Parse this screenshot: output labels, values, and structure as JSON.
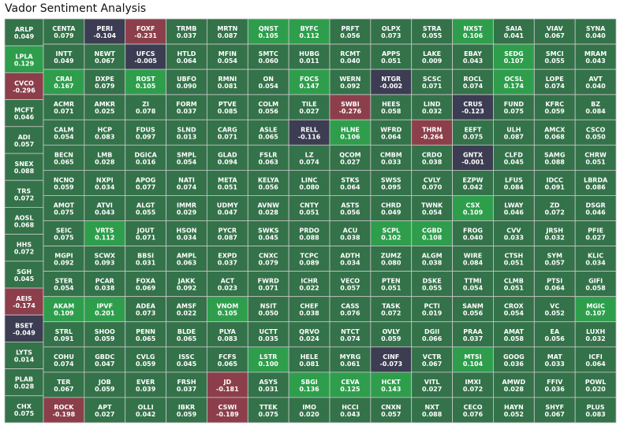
{
  "title": "Vador Sentiment Analysis",
  "colors": {
    "positive_low": "#34724a",
    "positive_high": "#2e9e4c",
    "negative_mild": "#3c3d52",
    "negative_strong": "#8c3f4b",
    "border": "#c8c8c8"
  },
  "chart_data": {
    "type": "heatmap",
    "title": "Vador Sentiment Analysis",
    "left_column": [
      {
        "ticker": "ARLP",
        "value": 0.049
      },
      {
        "ticker": "LPLA",
        "value": 0.129
      },
      {
        "ticker": "CVCO",
        "value": -0.296
      },
      {
        "ticker": "MCFT",
        "value": 0.046
      },
      {
        "ticker": "ADI",
        "value": 0.057
      },
      {
        "ticker": "SNEX",
        "value": 0.088
      },
      {
        "ticker": "TRS",
        "value": 0.072
      },
      {
        "ticker": "AOSL",
        "value": 0.068
      },
      {
        "ticker": "HHS",
        "value": 0.072
      },
      {
        "ticker": "SGH",
        "value": 0.045
      },
      {
        "ticker": "AEIS",
        "value": -0.174
      },
      {
        "ticker": "BSET",
        "value": -0.049
      },
      {
        "ticker": "LYTS",
        "value": 0.014
      },
      {
        "ticker": "PLAB",
        "value": 0.028
      },
      {
        "ticker": "CHX",
        "value": 0.075
      }
    ],
    "grid_rows": [
      [
        [
          "CENTA",
          0.079
        ],
        [
          "PERI",
          -0.104
        ],
        [
          "FOXF",
          -0.231
        ],
        [
          "TRMB",
          0.037
        ],
        [
          "MRTN",
          0.087
        ],
        [
          "QNST",
          0.105
        ],
        [
          "BYFC",
          0.112
        ],
        [
          "PRFT",
          0.056
        ],
        [
          "OLPX",
          0.073
        ],
        [
          "STRA",
          0.055
        ],
        [
          "NXST",
          0.106
        ],
        [
          "SAIA",
          0.041
        ],
        [
          "VIAV",
          0.067
        ],
        [
          "SYNA",
          0.04
        ]
      ],
      [
        [
          "INTT",
          0.049
        ],
        [
          "NEWT",
          0.067
        ],
        [
          "UFCS",
          -0.005
        ],
        [
          "HTLD",
          0.064
        ],
        [
          "MFIN",
          0.054
        ],
        [
          "SMTC",
          0.06
        ],
        [
          "HUBG",
          0.011
        ],
        [
          "RCMT",
          0.04
        ],
        [
          "APPS",
          0.051
        ],
        [
          "LAKE",
          0.009
        ],
        [
          "EBAY",
          0.043
        ],
        [
          "SEDG",
          0.107
        ],
        [
          "SMCI",
          0.055
        ],
        [
          "MRAM",
          0.043
        ]
      ],
      [
        [
          "CRAI",
          0.167
        ],
        [
          "DXPE",
          0.079
        ],
        [
          "ROST",
          0.105
        ],
        [
          "UBFO",
          0.09
        ],
        [
          "RMNI",
          0.081
        ],
        [
          "ON",
          0.054
        ],
        [
          "FOCS",
          0.147
        ],
        [
          "WERN",
          0.092
        ],
        [
          "NTGR",
          -0.002
        ],
        [
          "SCSC",
          0.071
        ],
        [
          "ROCL",
          0.074
        ],
        [
          "OCSL",
          0.174
        ],
        [
          "LOPE",
          0.074
        ],
        [
          "AVT",
          0.04
        ]
      ],
      [
        [
          "ACMR",
          0.071
        ],
        [
          "AMKR",
          0.025
        ],
        [
          "ZI",
          0.078
        ],
        [
          "FORM",
          0.037
        ],
        [
          "PTVE",
          0.085
        ],
        [
          "COLM",
          0.056
        ],
        [
          "TILE",
          0.027
        ],
        [
          "SWBI",
          -0.276
        ],
        [
          "HEES",
          0.058
        ],
        [
          "LIND",
          0.032
        ],
        [
          "CRUS",
          -0.123
        ],
        [
          "FUND",
          0.075
        ],
        [
          "KFRC",
          0.059
        ],
        [
          "BZ",
          0.084
        ]
      ],
      [
        [
          "CALM",
          0.054
        ],
        [
          "HCP",
          0.083
        ],
        [
          "FDUS",
          0.097
        ],
        [
          "SLND",
          0.013
        ],
        [
          "CARG",
          0.071
        ],
        [
          "ASLE",
          0.065
        ],
        [
          "RELL",
          -0.116
        ],
        [
          "HLNE",
          0.106
        ],
        [
          "WFRD",
          0.064
        ],
        [
          "THRN",
          -0.264
        ],
        [
          "EEFT",
          0.075
        ],
        [
          "ULH",
          0.087
        ],
        [
          "AMCX",
          0.068
        ],
        [
          "CSCO",
          0.05
        ]
      ],
      [
        [
          "BECN",
          0.065
        ],
        [
          "LMB",
          0.028
        ],
        [
          "DGICA",
          0.016
        ],
        [
          "SMPL",
          0.054
        ],
        [
          "GLAD",
          0.094
        ],
        [
          "FSLR",
          0.063
        ],
        [
          "LZ",
          0.074
        ],
        [
          "QCOM",
          0.027
        ],
        [
          "CMBM",
          0.033
        ],
        [
          "CRDO",
          0.038
        ],
        [
          "GNTX",
          -0.001
        ],
        [
          "CLFD",
          0.045
        ],
        [
          "SAMG",
          0.088
        ],
        [
          "CHRW",
          0.051
        ]
      ],
      [
        [
          "NCNO",
          0.059
        ],
        [
          "NXPI",
          0.034
        ],
        [
          "APOG",
          0.077
        ],
        [
          "NATI",
          0.074
        ],
        [
          "META",
          0.051
        ],
        [
          "KELYA",
          0.056
        ],
        [
          "LINC",
          0.08
        ],
        [
          "STKS",
          0.064
        ],
        [
          "SWSS",
          0.095
        ],
        [
          "CVLY",
          0.07
        ],
        [
          "EZPW",
          0.042
        ],
        [
          "LFUS",
          0.084
        ],
        [
          "IDCC",
          0.091
        ],
        [
          "LBRDA",
          0.086
        ]
      ],
      [
        [
          "AMOT",
          0.075
        ],
        [
          "ATVI",
          0.043
        ],
        [
          "ALGT",
          0.055
        ],
        [
          "IMMR",
          0.029
        ],
        [
          "UDMY",
          0.047
        ],
        [
          "AVNW",
          0.028
        ],
        [
          "CNTY",
          0.051
        ],
        [
          "ASTS",
          0.056
        ],
        [
          "CHRD",
          0.049
        ],
        [
          "TWNK",
          0.054
        ],
        [
          "CSX",
          0.109
        ],
        [
          "LWAY",
          0.046
        ],
        [
          "ZD",
          0.072
        ],
        [
          "DSGR",
          0.046
        ]
      ],
      [
        [
          "SEIC",
          0.075
        ],
        [
          "VRTS",
          0.112
        ],
        [
          "JOUT",
          0.071
        ],
        [
          "HSON",
          0.034
        ],
        [
          "PYCR",
          0.087
        ],
        [
          "SWKS",
          0.045
        ],
        [
          "PRDO",
          0.088
        ],
        [
          "ACU",
          0.038
        ],
        [
          "SCPL",
          0.102
        ],
        [
          "CGBD",
          0.108
        ],
        [
          "FROG",
          0.04
        ],
        [
          "CVV",
          0.033
        ],
        [
          "JRSH",
          0.032
        ],
        [
          "PFIE",
          0.027
        ]
      ],
      [
        [
          "MGPI",
          0.092
        ],
        [
          "SCWX",
          0.093
        ],
        [
          "BBSI",
          0.031
        ],
        [
          "AMPL",
          0.063
        ],
        [
          "EXPD",
          0.037
        ],
        [
          "CNXC",
          0.079
        ],
        [
          "TCPC",
          0.089
        ],
        [
          "ADTH",
          0.034
        ],
        [
          "ZUMZ",
          0.08
        ],
        [
          "ALGM",
          0.038
        ],
        [
          "WIRE",
          0.084
        ],
        [
          "CTSH",
          0.051
        ],
        [
          "SYM",
          0.057
        ],
        [
          "KLIC",
          0.034
        ]
      ],
      [
        [
          "STER",
          0.054
        ],
        [
          "PCAR",
          0.038
        ],
        [
          "FOXA",
          0.069
        ],
        [
          "JAKK",
          0.092
        ],
        [
          "ACT",
          0.023
        ],
        [
          "FWRD",
          0.071
        ],
        [
          "ICHR",
          0.022
        ],
        [
          "VECO",
          0.057
        ],
        [
          "PTEN",
          0.051
        ],
        [
          "DSKE",
          0.055
        ],
        [
          "TTMI",
          0.054
        ],
        [
          "CLMB",
          0.051
        ],
        [
          "PTSI",
          0.064
        ],
        [
          "GIFI",
          0.058
        ]
      ],
      [
        [
          "AKAM",
          0.109
        ],
        [
          "IPVF",
          0.201
        ],
        [
          "ADEA",
          0.073
        ],
        [
          "AMSF",
          0.022
        ],
        [
          "VNOM",
          0.105
        ],
        [
          "NSIT",
          0.05
        ],
        [
          "CHEF",
          0.038
        ],
        [
          "CASS",
          0.076
        ],
        [
          "TASK",
          0.072
        ],
        [
          "PCTI",
          0.019
        ],
        [
          "SANM",
          0.056
        ],
        [
          "CROX",
          0.054
        ],
        [
          "VC",
          0.052
        ],
        [
          "MGIC",
          0.107
        ]
      ],
      [
        [
          "STRL",
          0.091
        ],
        [
          "SHOO",
          0.059
        ],
        [
          "PENN",
          0.065
        ],
        [
          "BLDE",
          0.065
        ],
        [
          "PLYA",
          0.083
        ],
        [
          "UCTT",
          0.035
        ],
        [
          "QRVO",
          0.024
        ],
        [
          "NTCT",
          0.074
        ],
        [
          "OVLY",
          0.059
        ],
        [
          "DGII",
          0.066
        ],
        [
          "PRAA",
          0.037
        ],
        [
          "AMAT",
          0.058
        ],
        [
          "EA",
          0.056
        ],
        [
          "LUXH",
          0.032
        ]
      ],
      [
        [
          "COHU",
          0.074
        ],
        [
          "GBDC",
          0.047
        ],
        [
          "CVLG",
          0.059
        ],
        [
          "ISSC",
          0.045
        ],
        [
          "FCFS",
          0.065
        ],
        [
          "LSTR",
          0.1
        ],
        [
          "HELE",
          0.081
        ],
        [
          "MYRG",
          0.061
        ],
        [
          "CINF",
          -0.073
        ],
        [
          "VCTR",
          0.067
        ],
        [
          "MTSI",
          0.104
        ],
        [
          "GOOG",
          0.036
        ],
        [
          "MAT",
          0.033
        ],
        [
          "ICFI",
          0.064
        ]
      ],
      [
        [
          "TER",
          0.067
        ],
        [
          "JOB",
          0.059
        ],
        [
          "EVER",
          0.039
        ],
        [
          "FRSH",
          0.037
        ],
        [
          "JD",
          -0.181
        ],
        [
          "ASYS",
          0.031
        ],
        [
          "SBGI",
          0.136
        ],
        [
          "CEVA",
          0.125
        ],
        [
          "HCKT",
          0.143
        ],
        [
          "VITL",
          0.027
        ],
        [
          "IMXI",
          0.072
        ],
        [
          "AMWD",
          0.028
        ],
        [
          "FFIV",
          0.036
        ],
        [
          "POWL",
          0.02
        ]
      ],
      [
        [
          "ROCK",
          -0.198
        ],
        [
          "APT",
          0.027
        ],
        [
          "OLLI",
          0.042
        ],
        [
          "IBKR",
          0.059
        ],
        [
          "CSWI",
          -0.189
        ],
        [
          "TTEK",
          0.075
        ],
        [
          "IMO",
          0.02
        ],
        [
          "HCCI",
          0.043
        ],
        [
          "CNXN",
          0.057
        ],
        [
          "NXT",
          0.088
        ],
        [
          "CECO",
          0.076
        ],
        [
          "HAYN",
          0.052
        ],
        [
          "SHYF",
          0.067
        ],
        [
          "PLUS",
          0.083
        ]
      ]
    ]
  }
}
